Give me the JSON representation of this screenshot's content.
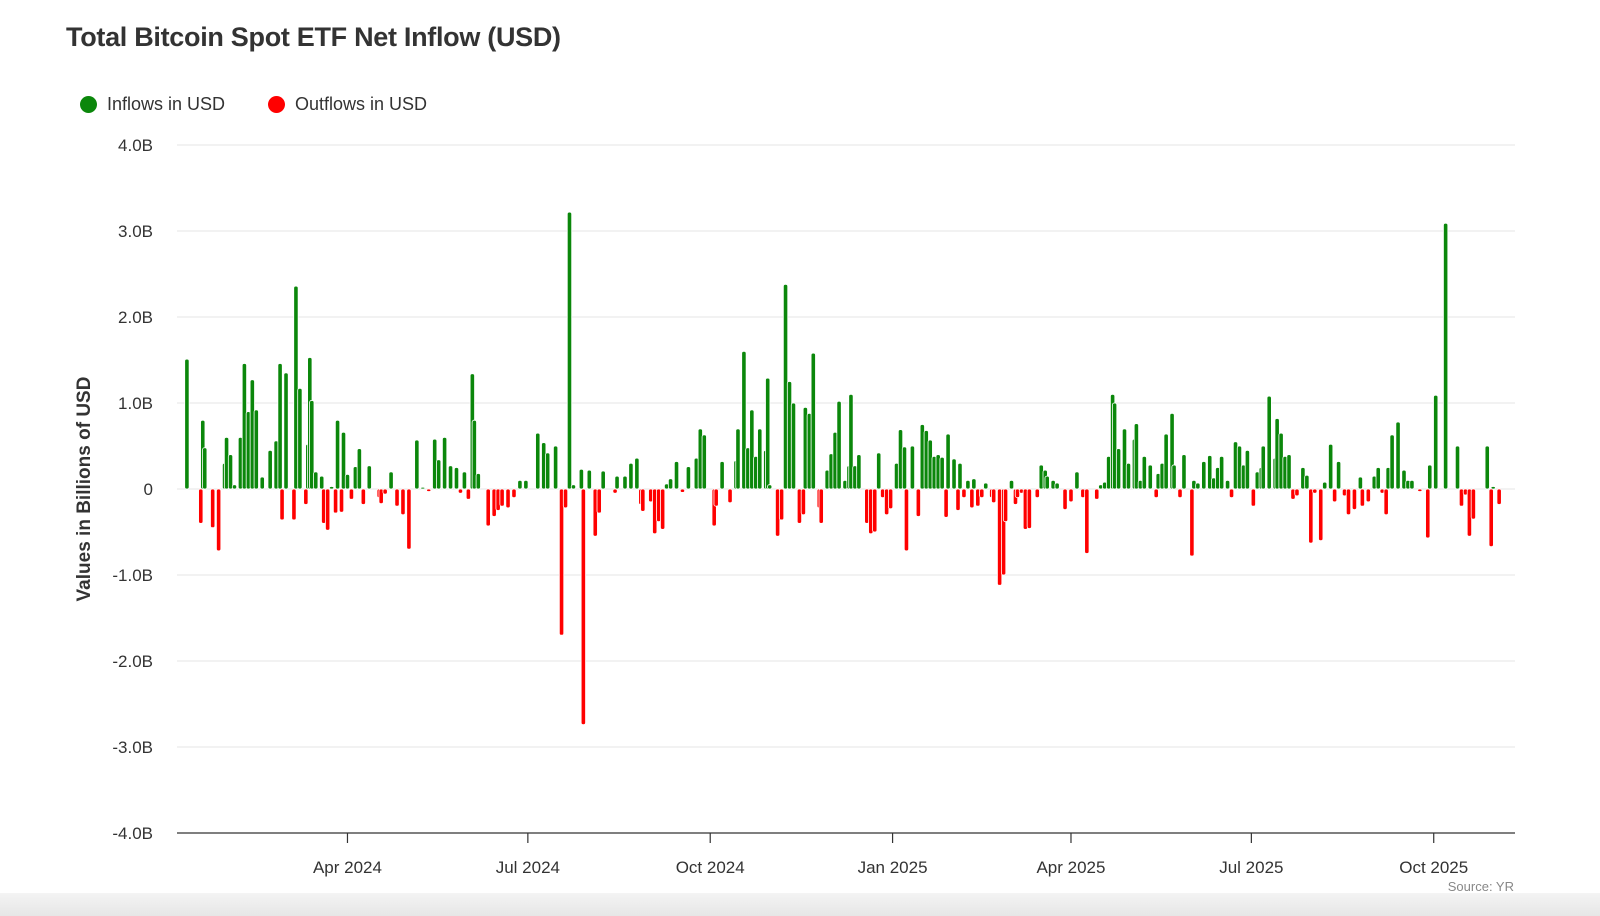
{
  "chart_data": {
    "type": "bar",
    "title": "Total Bitcoin Spot ETF Net Inflow (USD)",
    "ylabel": "Values in Billions of USD",
    "xlabel": "",
    "ylim": [
      -4,
      4
    ],
    "xlim": [
      "2024-01-06",
      "2025-11-11"
    ],
    "grid": true,
    "legend_placement": "top-left",
    "yticks": [
      4,
      3,
      2,
      1,
      0,
      -1,
      -2,
      -3,
      -4
    ],
    "ytick_labels": [
      "4.0B",
      "3.0B",
      "2.0B",
      "1.0B",
      "0",
      "-1.0B",
      "-2.0B",
      "-3.0B",
      "-4.0B"
    ],
    "xticks": [
      "2024-04-01",
      "2024-07-01",
      "2024-10-01",
      "2025-01-01",
      "2025-04-01",
      "2025-07-01",
      "2025-10-01"
    ],
    "xtick_labels": [
      "Apr 2024",
      "Jul 2024",
      "Oct 2024",
      "Jan 2025",
      "Apr 2025",
      "Jul 2025",
      "Oct 2025"
    ],
    "series": [
      {
        "name": "Inflows in USD",
        "color": "#0b870b"
      },
      {
        "name": "Outflows in USD",
        "color": "#ff0000"
      }
    ],
    "points": [
      [
        "2024-01-11",
        1.51
      ],
      [
        "2024-01-18",
        -0.4
      ],
      [
        "2024-01-19",
        0.8
      ],
      [
        "2024-01-20",
        0.48
      ],
      [
        "2024-01-24",
        -0.45
      ],
      [
        "2024-01-27",
        -0.72
      ],
      [
        "2024-01-30",
        0.3
      ],
      [
        "2024-01-31",
        0.6
      ],
      [
        "2024-02-02",
        0.4
      ],
      [
        "2024-02-04",
        0.05
      ],
      [
        "2024-02-07",
        0.6
      ],
      [
        "2024-02-09",
        1.46
      ],
      [
        "2024-02-11",
        0.9
      ],
      [
        "2024-02-13",
        1.27
      ],
      [
        "2024-02-15",
        0.92
      ],
      [
        "2024-02-18",
        0.14
      ],
      [
        "2024-02-22",
        0.45
      ],
      [
        "2024-02-25",
        0.56
      ],
      [
        "2024-02-27",
        1.46
      ],
      [
        "2024-02-28",
        -0.36
      ],
      [
        "2024-03-01",
        1.35
      ],
      [
        "2024-03-05",
        -0.36
      ],
      [
        "2024-03-06",
        2.36
      ],
      [
        "2024-03-08",
        1.17
      ],
      [
        "2024-03-11",
        -0.18
      ],
      [
        "2024-03-12",
        0.52
      ],
      [
        "2024-03-13",
        1.53
      ],
      [
        "2024-03-14",
        1.03
      ],
      [
        "2024-03-16",
        0.2
      ],
      [
        "2024-03-19",
        0.15
      ],
      [
        "2024-03-20",
        -0.4
      ],
      [
        "2024-03-22",
        -0.48
      ],
      [
        "2024-03-24",
        0.03
      ],
      [
        "2024-03-26",
        -0.28
      ],
      [
        "2024-03-27",
        0.8
      ],
      [
        "2024-03-29",
        -0.27
      ],
      [
        "2024-03-30",
        0.66
      ],
      [
        "2024-04-01",
        0.17
      ],
      [
        "2024-04-03",
        -0.12
      ],
      [
        "2024-04-05",
        0.26
      ],
      [
        "2024-04-07",
        0.47
      ],
      [
        "2024-04-09",
        -0.18
      ],
      [
        "2024-04-12",
        0.27
      ],
      [
        "2024-04-17",
        -0.1
      ],
      [
        "2024-04-18",
        -0.17
      ],
      [
        "2024-04-20",
        -0.06
      ],
      [
        "2024-04-23",
        0.2
      ],
      [
        "2024-04-26",
        -0.2
      ],
      [
        "2024-04-29",
        -0.3
      ],
      [
        "2024-05-02",
        -0.7
      ],
      [
        "2024-05-06",
        0.57
      ],
      [
        "2024-05-09",
        0.02
      ],
      [
        "2024-05-12",
        -0.03
      ],
      [
        "2024-05-15",
        0.58
      ],
      [
        "2024-05-17",
        0.34
      ],
      [
        "2024-05-20",
        0.6
      ],
      [
        "2024-05-23",
        0.27
      ],
      [
        "2024-05-26",
        0.25
      ],
      [
        "2024-05-28",
        -0.05
      ],
      [
        "2024-05-30",
        0.2
      ],
      [
        "2024-06-01",
        -0.12
      ],
      [
        "2024-06-03",
        1.34
      ],
      [
        "2024-06-04",
        0.8
      ],
      [
        "2024-06-06",
        0.18
      ],
      [
        "2024-06-11",
        -0.43
      ],
      [
        "2024-06-14",
        -0.32
      ],
      [
        "2024-06-16",
        -0.25
      ],
      [
        "2024-06-18",
        -0.2
      ],
      [
        "2024-06-21",
        -0.22
      ],
      [
        "2024-06-24",
        -0.1
      ],
      [
        "2024-06-27",
        0.1
      ],
      [
        "2024-06-30",
        0.1
      ],
      [
        "2024-07-06",
        0.65
      ],
      [
        "2024-07-09",
        0.54
      ],
      [
        "2024-07-11",
        0.42
      ],
      [
        "2024-07-15",
        0.5
      ],
      [
        "2024-07-18",
        -1.7
      ],
      [
        "2024-07-20",
        -0.22
      ],
      [
        "2024-07-22",
        3.22
      ],
      [
        "2024-07-24",
        0.05
      ],
      [
        "2024-07-28",
        0.23
      ],
      [
        "2024-07-29",
        -2.74
      ],
      [
        "2024-08-01",
        0.22
      ],
      [
        "2024-08-04",
        -0.55
      ],
      [
        "2024-08-06",
        -0.28
      ],
      [
        "2024-08-08",
        0.21
      ],
      [
        "2024-08-14",
        -0.05
      ],
      [
        "2024-08-15",
        0.15
      ],
      [
        "2024-08-19",
        0.15
      ],
      [
        "2024-08-22",
        0.3
      ],
      [
        "2024-08-25",
        0.36
      ],
      [
        "2024-08-27",
        -0.18
      ],
      [
        "2024-08-28",
        -0.26
      ],
      [
        "2024-09-01",
        -0.15
      ],
      [
        "2024-09-03",
        -0.52
      ],
      [
        "2024-09-05",
        -0.38
      ],
      [
        "2024-09-07",
        -0.47
      ],
      [
        "2024-09-09",
        0.06
      ],
      [
        "2024-09-11",
        0.12
      ],
      [
        "2024-09-14",
        0.32
      ],
      [
        "2024-09-17",
        -0.04
      ],
      [
        "2024-09-20",
        0.26
      ],
      [
        "2024-09-24",
        0.36
      ],
      [
        "2024-09-26",
        0.7
      ],
      [
        "2024-09-28",
        0.63
      ],
      [
        "2024-10-03",
        -0.43
      ],
      [
        "2024-10-04",
        -0.2
      ],
      [
        "2024-10-07",
        0.32
      ],
      [
        "2024-10-11",
        -0.16
      ],
      [
        "2024-10-14",
        0.33
      ],
      [
        "2024-10-15",
        0.7
      ],
      [
        "2024-10-18",
        1.6
      ],
      [
        "2024-10-20",
        0.48
      ],
      [
        "2024-10-22",
        0.92
      ],
      [
        "2024-10-24",
        0.38
      ],
      [
        "2024-10-26",
        0.7
      ],
      [
        "2024-10-29",
        0.45
      ],
      [
        "2024-10-30",
        1.29
      ],
      [
        "2024-10-31",
        0.05
      ],
      [
        "2024-11-04",
        -0.55
      ],
      [
        "2024-11-06",
        -0.36
      ],
      [
        "2024-11-08",
        2.38
      ],
      [
        "2024-11-10",
        1.25
      ],
      [
        "2024-11-12",
        1.0
      ],
      [
        "2024-11-15",
        -0.4
      ],
      [
        "2024-11-17",
        -0.3
      ],
      [
        "2024-11-18",
        0.95
      ],
      [
        "2024-11-20",
        0.88
      ],
      [
        "2024-11-22",
        1.58
      ],
      [
        "2024-11-25",
        -0.22
      ],
      [
        "2024-11-26",
        -0.4
      ],
      [
        "2024-11-29",
        0.22
      ],
      [
        "2024-12-01",
        0.41
      ],
      [
        "2024-12-03",
        0.66
      ],
      [
        "2024-12-05",
        1.02
      ],
      [
        "2024-12-08",
        0.1
      ],
      [
        "2024-12-10",
        0.27
      ],
      [
        "2024-12-11",
        1.1
      ],
      [
        "2024-12-13",
        0.27
      ],
      [
        "2024-12-15",
        0.4
      ],
      [
        "2024-12-19",
        -0.4
      ],
      [
        "2024-12-21",
        -0.52
      ],
      [
        "2024-12-23",
        -0.5
      ],
      [
        "2024-12-25",
        0.42
      ],
      [
        "2024-12-27",
        -0.1
      ],
      [
        "2024-12-29",
        -0.3
      ],
      [
        "2024-12-31",
        -0.23
      ],
      [
        "2025-01-03",
        0.3
      ],
      [
        "2025-01-05",
        0.69
      ],
      [
        "2025-01-07",
        0.49
      ],
      [
        "2025-01-08",
        -0.72
      ],
      [
        "2025-01-11",
        0.5
      ],
      [
        "2025-01-14",
        -0.32
      ],
      [
        "2025-01-16",
        0.75
      ],
      [
        "2025-01-18",
        0.68
      ],
      [
        "2025-01-20",
        0.57
      ],
      [
        "2025-01-22",
        0.38
      ],
      [
        "2025-01-24",
        0.4
      ],
      [
        "2025-01-26",
        0.37
      ],
      [
        "2025-01-28",
        -0.33
      ],
      [
        "2025-01-29",
        0.64
      ],
      [
        "2025-02-01",
        0.35
      ],
      [
        "2025-02-03",
        -0.25
      ],
      [
        "2025-02-04",
        0.3
      ],
      [
        "2025-02-06",
        -0.1
      ],
      [
        "2025-02-08",
        0.1
      ],
      [
        "2025-02-10",
        -0.22
      ],
      [
        "2025-02-11",
        0.12
      ],
      [
        "2025-02-13",
        -0.2
      ],
      [
        "2025-02-15",
        -0.1
      ],
      [
        "2025-02-17",
        0.07
      ],
      [
        "2025-02-20",
        -0.1
      ],
      [
        "2025-02-21",
        -0.16
      ],
      [
        "2025-02-24",
        -1.12
      ],
      [
        "2025-02-26",
        -1.0
      ],
      [
        "2025-02-27",
        -0.38
      ],
      [
        "2025-03-02",
        0.1
      ],
      [
        "2025-03-04",
        -0.18
      ],
      [
        "2025-03-05",
        -0.1
      ],
      [
        "2025-03-07",
        -0.05
      ],
      [
        "2025-03-09",
        -0.47
      ],
      [
        "2025-03-11",
        -0.46
      ],
      [
        "2025-03-15",
        -0.1
      ],
      [
        "2025-03-17",
        0.28
      ],
      [
        "2025-03-19",
        0.22
      ],
      [
        "2025-03-20",
        0.15
      ],
      [
        "2025-03-23",
        0.1
      ],
      [
        "2025-03-25",
        0.07
      ],
      [
        "2025-03-29",
        -0.24
      ],
      [
        "2025-04-01",
        -0.15
      ],
      [
        "2025-04-04",
        0.2
      ],
      [
        "2025-04-07",
        -0.1
      ],
      [
        "2025-04-09",
        -0.75
      ],
      [
        "2025-04-14",
        -0.12
      ],
      [
        "2025-04-16",
        0.05
      ],
      [
        "2025-04-18",
        0.08
      ],
      [
        "2025-04-20",
        0.38
      ],
      [
        "2025-04-22",
        1.1
      ],
      [
        "2025-04-23",
        1.0
      ],
      [
        "2025-04-25",
        0.47
      ],
      [
        "2025-04-28",
        0.7
      ],
      [
        "2025-04-30",
        0.3
      ],
      [
        "2025-05-03",
        0.58
      ],
      [
        "2025-05-04",
        0.76
      ],
      [
        "2025-05-06",
        0.1
      ],
      [
        "2025-05-08",
        0.38
      ],
      [
        "2025-05-11",
        0.28
      ],
      [
        "2025-05-14",
        -0.1
      ],
      [
        "2025-05-15",
        0.18
      ],
      [
        "2025-05-17",
        0.3
      ],
      [
        "2025-05-19",
        0.64
      ],
      [
        "2025-05-22",
        0.88
      ],
      [
        "2025-05-23",
        0.28
      ],
      [
        "2025-05-26",
        -0.1
      ],
      [
        "2025-05-28",
        0.4
      ],
      [
        "2025-06-01",
        -0.78
      ],
      [
        "2025-06-02",
        0.1
      ],
      [
        "2025-06-04",
        0.07
      ],
      [
        "2025-06-07",
        0.32
      ],
      [
        "2025-06-10",
        0.39
      ],
      [
        "2025-06-12",
        0.13
      ],
      [
        "2025-06-14",
        0.25
      ],
      [
        "2025-06-16",
        0.38
      ],
      [
        "2025-06-19",
        0.1
      ],
      [
        "2025-06-21",
        -0.1
      ],
      [
        "2025-06-23",
        0.55
      ],
      [
        "2025-06-25",
        0.5
      ],
      [
        "2025-06-27",
        0.28
      ],
      [
        "2025-06-29",
        0.45
      ],
      [
        "2025-07-02",
        -0.2
      ],
      [
        "2025-07-04",
        0.2
      ],
      [
        "2025-07-06",
        0.25
      ],
      [
        "2025-07-07",
        0.5
      ],
      [
        "2025-07-10",
        1.08
      ],
      [
        "2025-07-13",
        0.36
      ],
      [
        "2025-07-14",
        0.82
      ],
      [
        "2025-07-16",
        0.65
      ],
      [
        "2025-07-18",
        0.38
      ],
      [
        "2025-07-20",
        0.4
      ],
      [
        "2025-07-22",
        -0.12
      ],
      [
        "2025-07-24",
        -0.08
      ],
      [
        "2025-07-27",
        0.25
      ],
      [
        "2025-07-29",
        0.16
      ],
      [
        "2025-07-31",
        -0.63
      ],
      [
        "2025-08-02",
        -0.05
      ],
      [
        "2025-08-05",
        -0.6
      ],
      [
        "2025-08-07",
        0.08
      ],
      [
        "2025-08-10",
        0.52
      ],
      [
        "2025-08-12",
        -0.15
      ],
      [
        "2025-08-14",
        0.32
      ],
      [
        "2025-08-17",
        -0.08
      ],
      [
        "2025-08-19",
        -0.3
      ],
      [
        "2025-08-22",
        -0.24
      ],
      [
        "2025-08-25",
        0.14
      ],
      [
        "2025-08-26",
        -0.2
      ],
      [
        "2025-08-29",
        -0.15
      ],
      [
        "2025-09-01",
        0.15
      ],
      [
        "2025-09-03",
        0.25
      ],
      [
        "2025-09-05",
        -0.05
      ],
      [
        "2025-09-07",
        -0.3
      ],
      [
        "2025-09-08",
        0.25
      ],
      [
        "2025-09-10",
        0.63
      ],
      [
        "2025-09-13",
        0.78
      ],
      [
        "2025-09-16",
        0.22
      ],
      [
        "2025-09-18",
        0.1
      ],
      [
        "2025-09-20",
        0.1
      ],
      [
        "2025-09-24",
        -0.03
      ],
      [
        "2025-09-28",
        -0.57
      ],
      [
        "2025-09-29",
        0.28
      ],
      [
        "2025-10-02",
        1.09
      ],
      [
        "2025-10-07",
        3.09
      ],
      [
        "2025-10-13",
        0.5
      ],
      [
        "2025-10-15",
        -0.2
      ],
      [
        "2025-10-17",
        -0.07
      ],
      [
        "2025-10-19",
        -0.55
      ],
      [
        "2025-10-21",
        -0.35
      ],
      [
        "2025-10-28",
        0.5
      ],
      [
        "2025-10-30",
        -0.67
      ],
      [
        "2025-10-31",
        0.03
      ],
      [
        "2025-11-03",
        -0.18
      ]
    ],
    "source": "Source: YR"
  }
}
